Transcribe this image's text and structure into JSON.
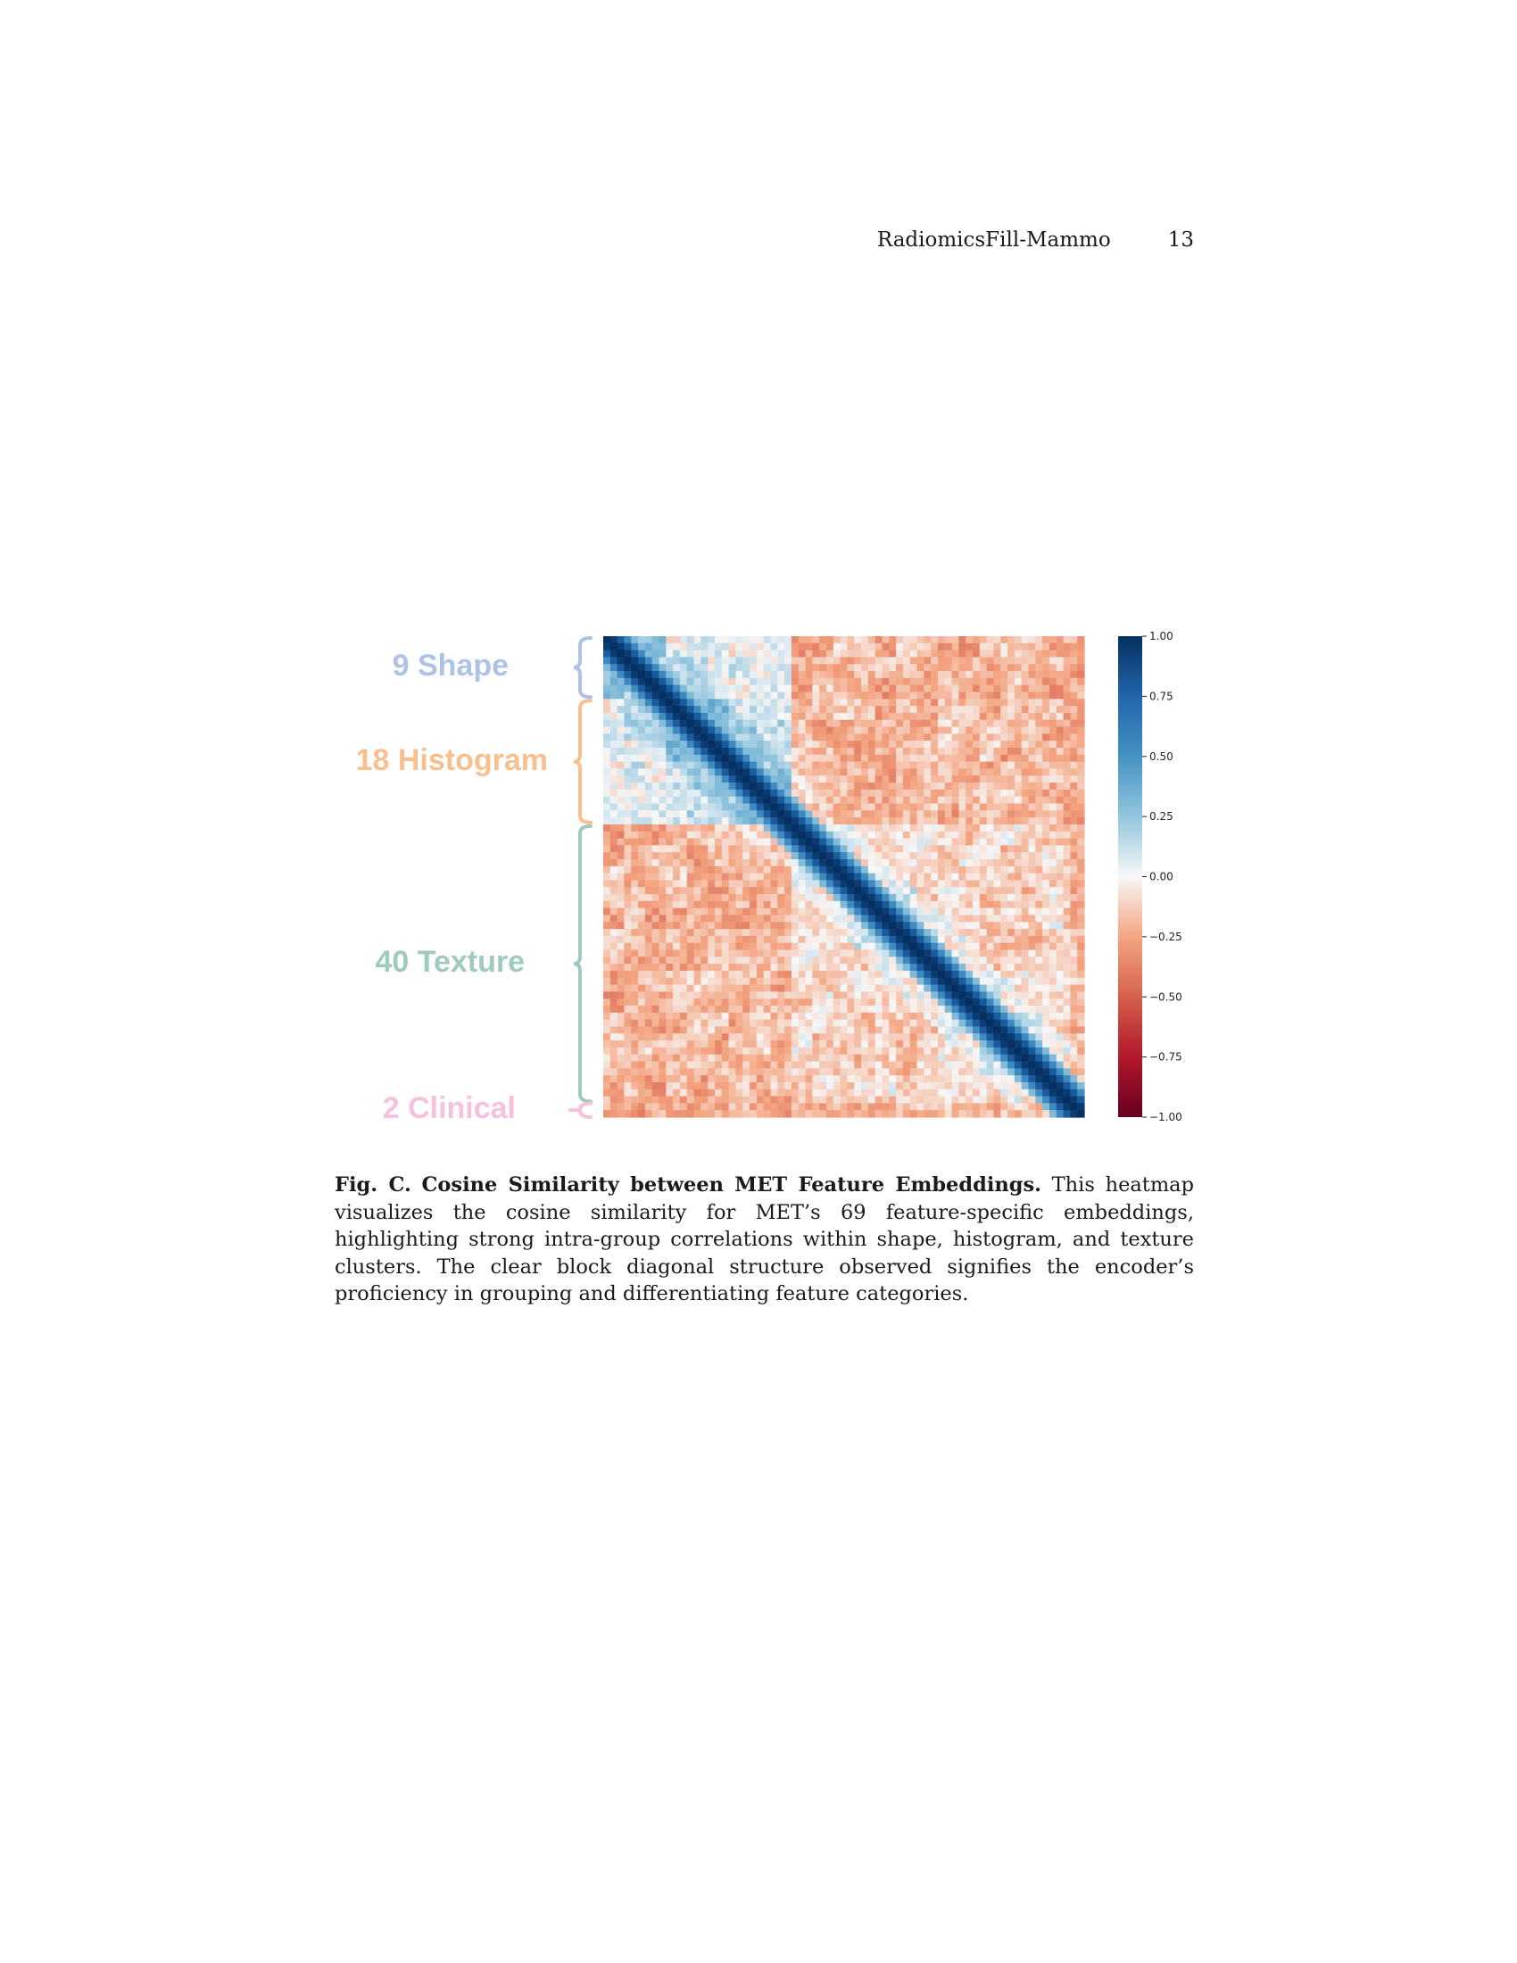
{
  "header": {
    "running_title": "RadiomicsFill-Mammo",
    "page_number": "13"
  },
  "figure": {
    "groups": [
      {
        "label": "9 Shape",
        "count": 9,
        "color": "#aec3e4"
      },
      {
        "label": "18 Histogram",
        "count": 18,
        "color": "#f8c08f"
      },
      {
        "label": "40 Texture",
        "count": 40,
        "color": "#9fcac0"
      },
      {
        "label": "2 Clinical",
        "count": 2,
        "color": "#f7c1dd"
      }
    ]
  },
  "chart_data": {
    "type": "heatmap",
    "n_features": 69,
    "value_range": [
      -1.0,
      1.0
    ],
    "colormap": "RdBu",
    "diagonal_value": 1.0,
    "colorbar_ticks": [
      "1.00",
      "0.75",
      "0.50",
      "0.25",
      "0.00",
      "−0.25",
      "−0.50",
      "−0.75",
      "−1.00"
    ]
  },
  "caption": {
    "label": "Fig. C.",
    "title": "Cosine Similarity between MET Feature Embeddings.",
    "text": "This heatmap visualizes the cosine similarity for MET’s 69 feature-specific embeddings, highlighting strong intra-group correlations within shape, histogram, and texture clusters. The clear block diagonal structure observed signifies the encoder’s proficiency in grouping and differentiating feature categories."
  }
}
